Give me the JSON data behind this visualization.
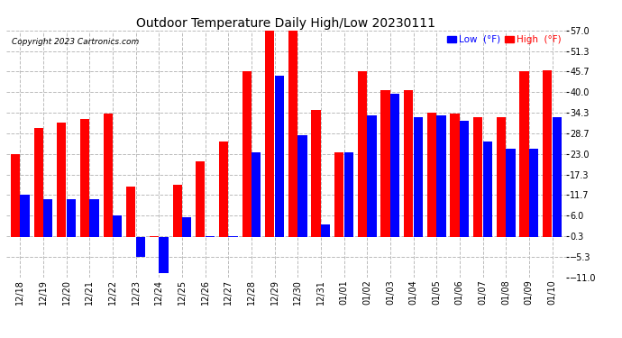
{
  "title": "Outdoor Temperature Daily High/Low 20230111",
  "copyright": "Copyright 2023 Cartronics.com",
  "low_color": "#0000ff",
  "high_color": "#ff0000",
  "bg_color": "#ffffff",
  "grid_color": "#bbbbbb",
  "dates": [
    "12/18",
    "12/19",
    "12/20",
    "12/21",
    "12/22",
    "12/23",
    "12/24",
    "12/25",
    "12/26",
    "12/27",
    "12/28",
    "12/29",
    "12/30",
    "12/31",
    "01/01",
    "01/02",
    "01/03",
    "01/04",
    "01/05",
    "01/06",
    "01/07",
    "01/08",
    "01/09",
    "01/10"
  ],
  "high_vals": [
    23.0,
    30.0,
    31.5,
    32.5,
    34.0,
    14.0,
    0.3,
    14.5,
    21.0,
    26.5,
    45.7,
    57.0,
    57.0,
    35.0,
    23.5,
    45.7,
    40.5,
    40.5,
    34.3,
    34.0,
    33.0,
    33.0,
    45.7,
    46.0
  ],
  "low_vals": [
    11.7,
    10.5,
    10.5,
    10.5,
    6.0,
    -5.3,
    -9.8,
    5.5,
    0.3,
    0.3,
    23.5,
    44.5,
    28.0,
    3.5,
    23.5,
    33.5,
    39.5,
    33.0,
    33.5,
    32.0,
    26.5,
    24.5,
    24.5,
    33.0
  ],
  "ylim": [
    -11.0,
    57.0
  ],
  "yticks": [
    -11.0,
    -5.3,
    0.3,
    6.0,
    11.7,
    17.3,
    23.0,
    28.7,
    34.3,
    40.0,
    45.7,
    51.3,
    57.0
  ]
}
